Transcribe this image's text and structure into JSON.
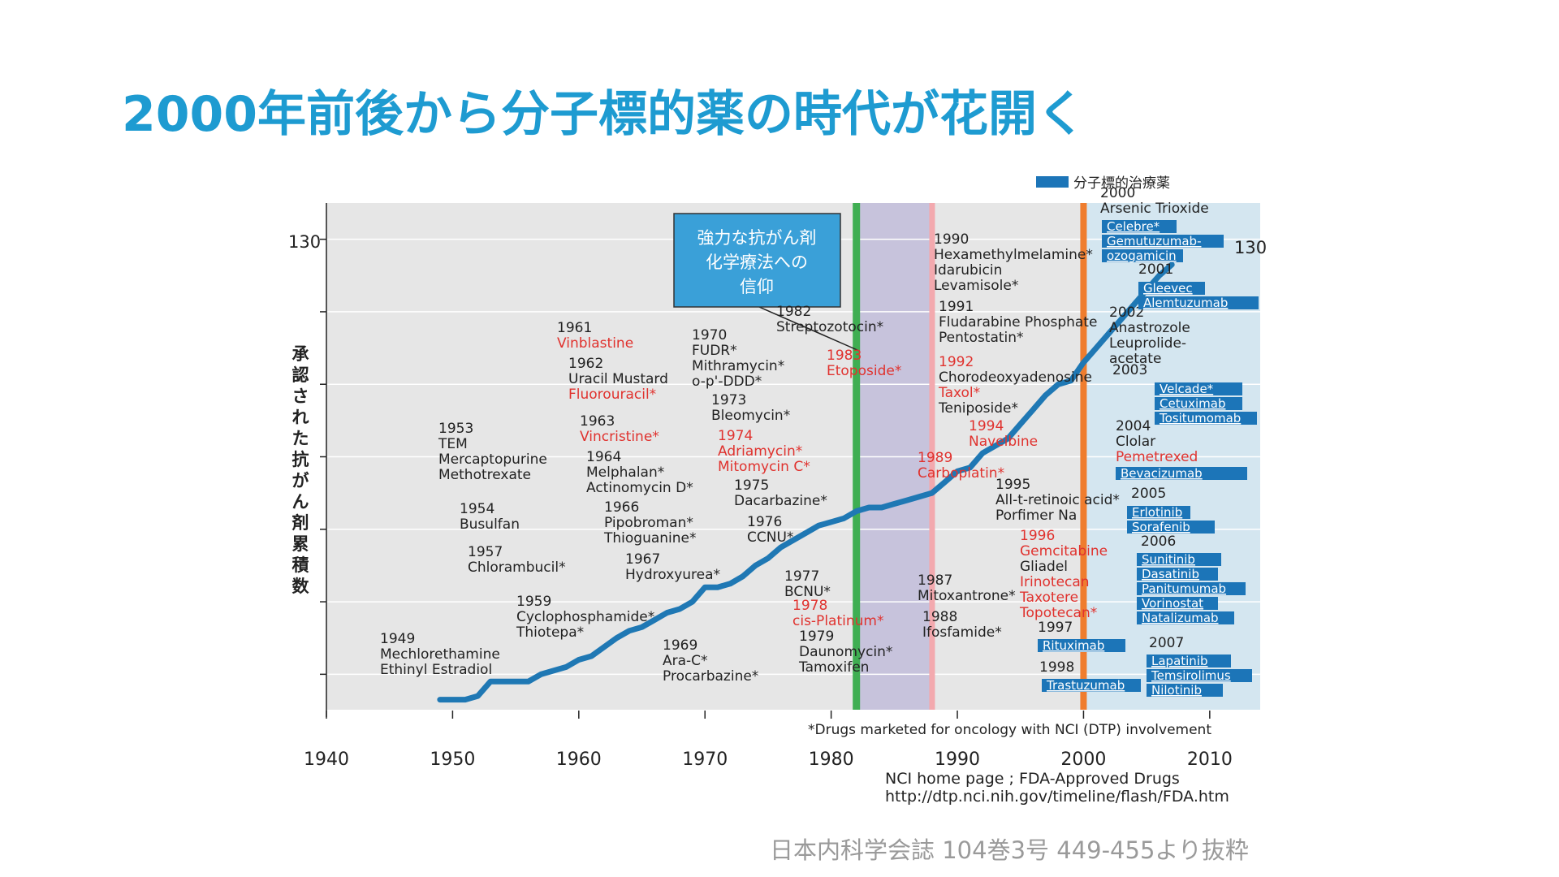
{
  "slide_title": "2000年前後から分子標的薬の時代が花開く",
  "citation": "日本内科学会誌 104巻3号 449-455より抜粋",
  "colors": {
    "title": "#1e9bd1",
    "line": "#1f78b4",
    "plot_bg": "#e6e6e6",
    "shaded_region": "#c7c3dc",
    "molecular_bg": "#d4e6f0",
    "green_line": "#3fae52",
    "pink_line": "#f3a9ae",
    "orange_line": "#ef7d2e",
    "red_text": "#e0322e",
    "box_fill": "#1c75b8"
  },
  "chart_data": {
    "type": "line",
    "ylabel": "承認された抗がん剤累積数",
    "y_value_label": "130",
    "x_ticks": [
      "1940",
      "1950",
      "1960",
      "1970",
      "1980",
      "1990",
      "2000",
      "2010"
    ],
    "xlim": [
      1940,
      2014
    ],
    "ylim": [
      0,
      140
    ],
    "legend": {
      "label": "分子標的治療薬",
      "position": "top-right"
    },
    "series": [
      {
        "x": [
          1949,
          1951,
          1952,
          1953,
          1956,
          1957,
          1958,
          1959,
          1960,
          1961,
          1963,
          1964,
          1965,
          1966,
          1967,
          1968,
          1969,
          1970,
          1971,
          1972,
          1973,
          1974,
          1975,
          1976,
          1977,
          1978,
          1979,
          1980,
          1981,
          1982,
          1983,
          1984,
          1985,
          1986,
          1987,
          1988,
          1989,
          1990,
          1991,
          1992,
          1993,
          1994,
          1995,
          1996,
          1997,
          1998,
          1999,
          2000,
          2001,
          2002,
          2003,
          2004,
          2005,
          2006,
          2007
        ],
        "y": [
          3,
          3,
          4,
          8,
          8,
          10,
          11,
          12,
          14,
          15,
          20,
          22,
          23,
          25,
          27,
          28,
          30,
          34,
          34,
          35,
          37,
          40,
          42,
          45,
          47,
          49,
          51,
          52,
          53,
          55,
          56,
          56,
          57,
          58,
          59,
          60,
          63,
          66,
          67,
          71,
          73,
          75,
          79,
          83,
          87,
          90,
          91,
          96,
          100,
          104,
          108,
          112,
          116,
          120,
          123
        ]
      }
    ],
    "regions": [
      {
        "from": 1982,
        "to": 1988,
        "kind": "shaded"
      },
      {
        "from": 2000,
        "to": 2014,
        "kind": "molecular"
      }
    ],
    "vlines": [
      {
        "x": 1982,
        "color": "green"
      },
      {
        "x": 1988,
        "color": "pink"
      },
      {
        "x": 2000,
        "color": "orange"
      }
    ],
    "callout": {
      "lines": [
        "強力な抗がん剤",
        "化学療法への",
        "信仰"
      ]
    },
    "footnote": "*Drugs marketed for oncology with NCI (DTP) involvement",
    "source_lines": [
      "NCI home page ; FDA-Approved Drugs",
      "http://dtp.nci.nih.gov/timeline/flash/FDA.htm"
    ],
    "annotations": [
      {
        "lines": [
          [
            "1949",
            "k"
          ],
          [
            "Mechlorethamine",
            "k"
          ],
          [
            "Ethinyl Estradiol",
            "k"
          ]
        ]
      },
      {
        "lines": [
          [
            "1953",
            "k"
          ],
          [
            "TEM",
            "k"
          ],
          [
            "Mercaptopurine",
            "k"
          ],
          [
            "Methotrexate",
            "k"
          ]
        ]
      },
      {
        "lines": [
          [
            "1954",
            "k"
          ],
          [
            "Busulfan",
            "k"
          ]
        ]
      },
      {
        "lines": [
          [
            "1957",
            "k"
          ],
          [
            "Chlorambucil*",
            "k"
          ]
        ]
      },
      {
        "lines": [
          [
            "1959",
            "k"
          ],
          [
            "Cyclophosphamide*",
            "k"
          ],
          [
            "Thiotepa*",
            "k"
          ]
        ]
      },
      {
        "lines": [
          [
            "1961",
            "k"
          ],
          [
            "Vinblastine",
            "r"
          ]
        ]
      },
      {
        "lines": [
          [
            "1962",
            "k"
          ],
          [
            "Uracil Mustard",
            "k"
          ],
          [
            "Fluorouracil*",
            "r"
          ]
        ]
      },
      {
        "lines": [
          [
            "1963",
            "k"
          ],
          [
            "Vincristine*",
            "r"
          ]
        ]
      },
      {
        "lines": [
          [
            "1964",
            "k"
          ],
          [
            "Melphalan*",
            "k"
          ],
          [
            "Actinomycin D*",
            "k"
          ]
        ]
      },
      {
        "lines": [
          [
            "1966",
            "k"
          ],
          [
            "Pipobroman*",
            "k"
          ],
          [
            "Thioguanine*",
            "k"
          ]
        ]
      },
      {
        "lines": [
          [
            "1967",
            "k"
          ],
          [
            "Hydroxyurea*",
            "k"
          ]
        ]
      },
      {
        "lines": [
          [
            "1969",
            "k"
          ],
          [
            "Ara-C*",
            "k"
          ],
          [
            "Procarbazine*",
            "k"
          ]
        ]
      },
      {
        "lines": [
          [
            "1970",
            "k"
          ],
          [
            "FUDR*",
            "k"
          ],
          [
            "Mithramycin*",
            "k"
          ],
          [
            "o-p'-DDD*",
            "k"
          ]
        ]
      },
      {
        "lines": [
          [
            "1973",
            "k"
          ],
          [
            "Bleomycin*",
            "k"
          ]
        ]
      },
      {
        "lines": [
          [
            "1974",
            "r"
          ],
          [
            "Adriamycin*",
            "r"
          ],
          [
            "Mitomycin C*",
            "r"
          ]
        ]
      },
      {
        "lines": [
          [
            "1975",
            "k"
          ],
          [
            "Dacarbazine*",
            "k"
          ]
        ]
      },
      {
        "lines": [
          [
            "1976",
            "k"
          ],
          [
            "CCNU*",
            "k"
          ]
        ]
      },
      {
        "lines": [
          [
            "1977",
            "k"
          ],
          [
            "BCNU*",
            "k"
          ]
        ]
      },
      {
        "lines": [
          [
            "1978",
            "r"
          ],
          [
            "cis-Platinum*",
            "r"
          ]
        ]
      },
      {
        "lines": [
          [
            "1979",
            "k"
          ],
          [
            "Daunomycin*",
            "k"
          ],
          [
            "Tamoxifen",
            "k"
          ]
        ]
      },
      {
        "lines": [
          [
            "1982",
            "k"
          ],
          [
            "Streptozotocin*",
            "k"
          ]
        ]
      },
      {
        "lines": [
          [
            "1983",
            "r"
          ],
          [
            "Etoposide*",
            "r"
          ]
        ]
      },
      {
        "lines": [
          [
            "1987",
            "k"
          ],
          [
            "Mitoxantrone*",
            "k"
          ]
        ]
      },
      {
        "lines": [
          [
            "1988",
            "k"
          ],
          [
            "Ifosfamide*",
            "k"
          ]
        ]
      },
      {
        "lines": [
          [
            "1989",
            "r"
          ],
          [
            "Carboplatin*",
            "r"
          ]
        ]
      },
      {
        "lines": [
          [
            "1990",
            "k"
          ],
          [
            "Hexamethylmelamine*",
            "k"
          ],
          [
            "Idarubicin",
            "k"
          ],
          [
            "Levamisole*",
            "k"
          ]
        ]
      },
      {
        "lines": [
          [
            "1991",
            "k"
          ],
          [
            "Fludarabine Phosphate",
            "k"
          ],
          [
            "Pentostatin*",
            "k"
          ]
        ]
      },
      {
        "lines": [
          [
            "1992",
            "r"
          ],
          [
            "Chorodeoxyadenosine",
            "k"
          ],
          [
            "Taxol*",
            "r"
          ],
          [
            "Teniposide*",
            "k"
          ]
        ]
      },
      {
        "lines": [
          [
            "1994",
            "r"
          ],
          [
            "Navelbine",
            "r"
          ]
        ]
      },
      {
        "lines": [
          [
            "1995",
            "k"
          ],
          [
            "All-t-retinoic acid*",
            "k"
          ],
          [
            "Porfimer Na",
            "k"
          ]
        ]
      },
      {
        "lines": [
          [
            "1996",
            "r"
          ],
          [
            "Gemcitabine",
            "r"
          ],
          [
            "Gliadel",
            "k"
          ],
          [
            "Irinotecan",
            "r"
          ],
          [
            "Taxotere",
            "r"
          ],
          [
            "Topotecan*",
            "r"
          ]
        ]
      },
      {
        "lines": [
          [
            "1997",
            "k"
          ]
        ]
      },
      {
        "lines": [
          [
            "1998",
            "k"
          ]
        ]
      },
      {
        "lines": [
          [
            "2000",
            "k"
          ],
          [
            "Arsenic Trioxide",
            "k"
          ]
        ]
      },
      {
        "lines": [
          [
            "2001",
            "k"
          ]
        ]
      },
      {
        "lines": [
          [
            "2002",
            "k"
          ],
          [
            "Anastrozole",
            "k"
          ],
          [
            "Leuprolide-",
            "k"
          ],
          [
            "acetate",
            "k"
          ]
        ]
      },
      {
        "lines": [
          [
            "2003",
            "k"
          ]
        ]
      },
      {
        "lines": [
          [
            "2004",
            "k"
          ],
          [
            "Clolar",
            "k"
          ],
          [
            "Pemetrexed",
            "r"
          ]
        ]
      },
      {
        "lines": [
          [
            "2005",
            "k"
          ]
        ]
      },
      {
        "lines": [
          [
            "2006",
            "k"
          ]
        ]
      },
      {
        "lines": [
          [
            "2007",
            "k"
          ]
        ]
      }
    ],
    "targeted_drugs": [
      {
        "year": 1997,
        "name": "Rituximab"
      },
      {
        "year": 1998,
        "name": "Trastuzumab"
      },
      {
        "year": 2000,
        "name": "Celebre*"
      },
      {
        "year": 2000,
        "name": "Gemutuzumab-"
      },
      {
        "year": 2000,
        "name": "ozogamicin"
      },
      {
        "year": 2001,
        "name": "Gleevec"
      },
      {
        "year": 2001,
        "name": "Alemtuzumab"
      },
      {
        "year": 2003,
        "name": "Velcade*"
      },
      {
        "year": 2003,
        "name": "Cetuximab"
      },
      {
        "year": 2003,
        "name": "Tositumomab"
      },
      {
        "year": 2004,
        "name": "Bevacizumab"
      },
      {
        "year": 2005,
        "name": "Erlotinib"
      },
      {
        "year": 2005,
        "name": "Sorafenib"
      },
      {
        "year": 2006,
        "name": "Sunitinib"
      },
      {
        "year": 2006,
        "name": "Dasatinib"
      },
      {
        "year": 2006,
        "name": "Panitumumab"
      },
      {
        "year": 2006,
        "name": "Vorinostat"
      },
      {
        "year": 2006,
        "name": "Natalizumab"
      },
      {
        "year": 2007,
        "name": "Lapatinib"
      },
      {
        "year": 2007,
        "name": "Temsirolimus"
      },
      {
        "year": 2007,
        "name": "Nilotinib"
      }
    ]
  }
}
